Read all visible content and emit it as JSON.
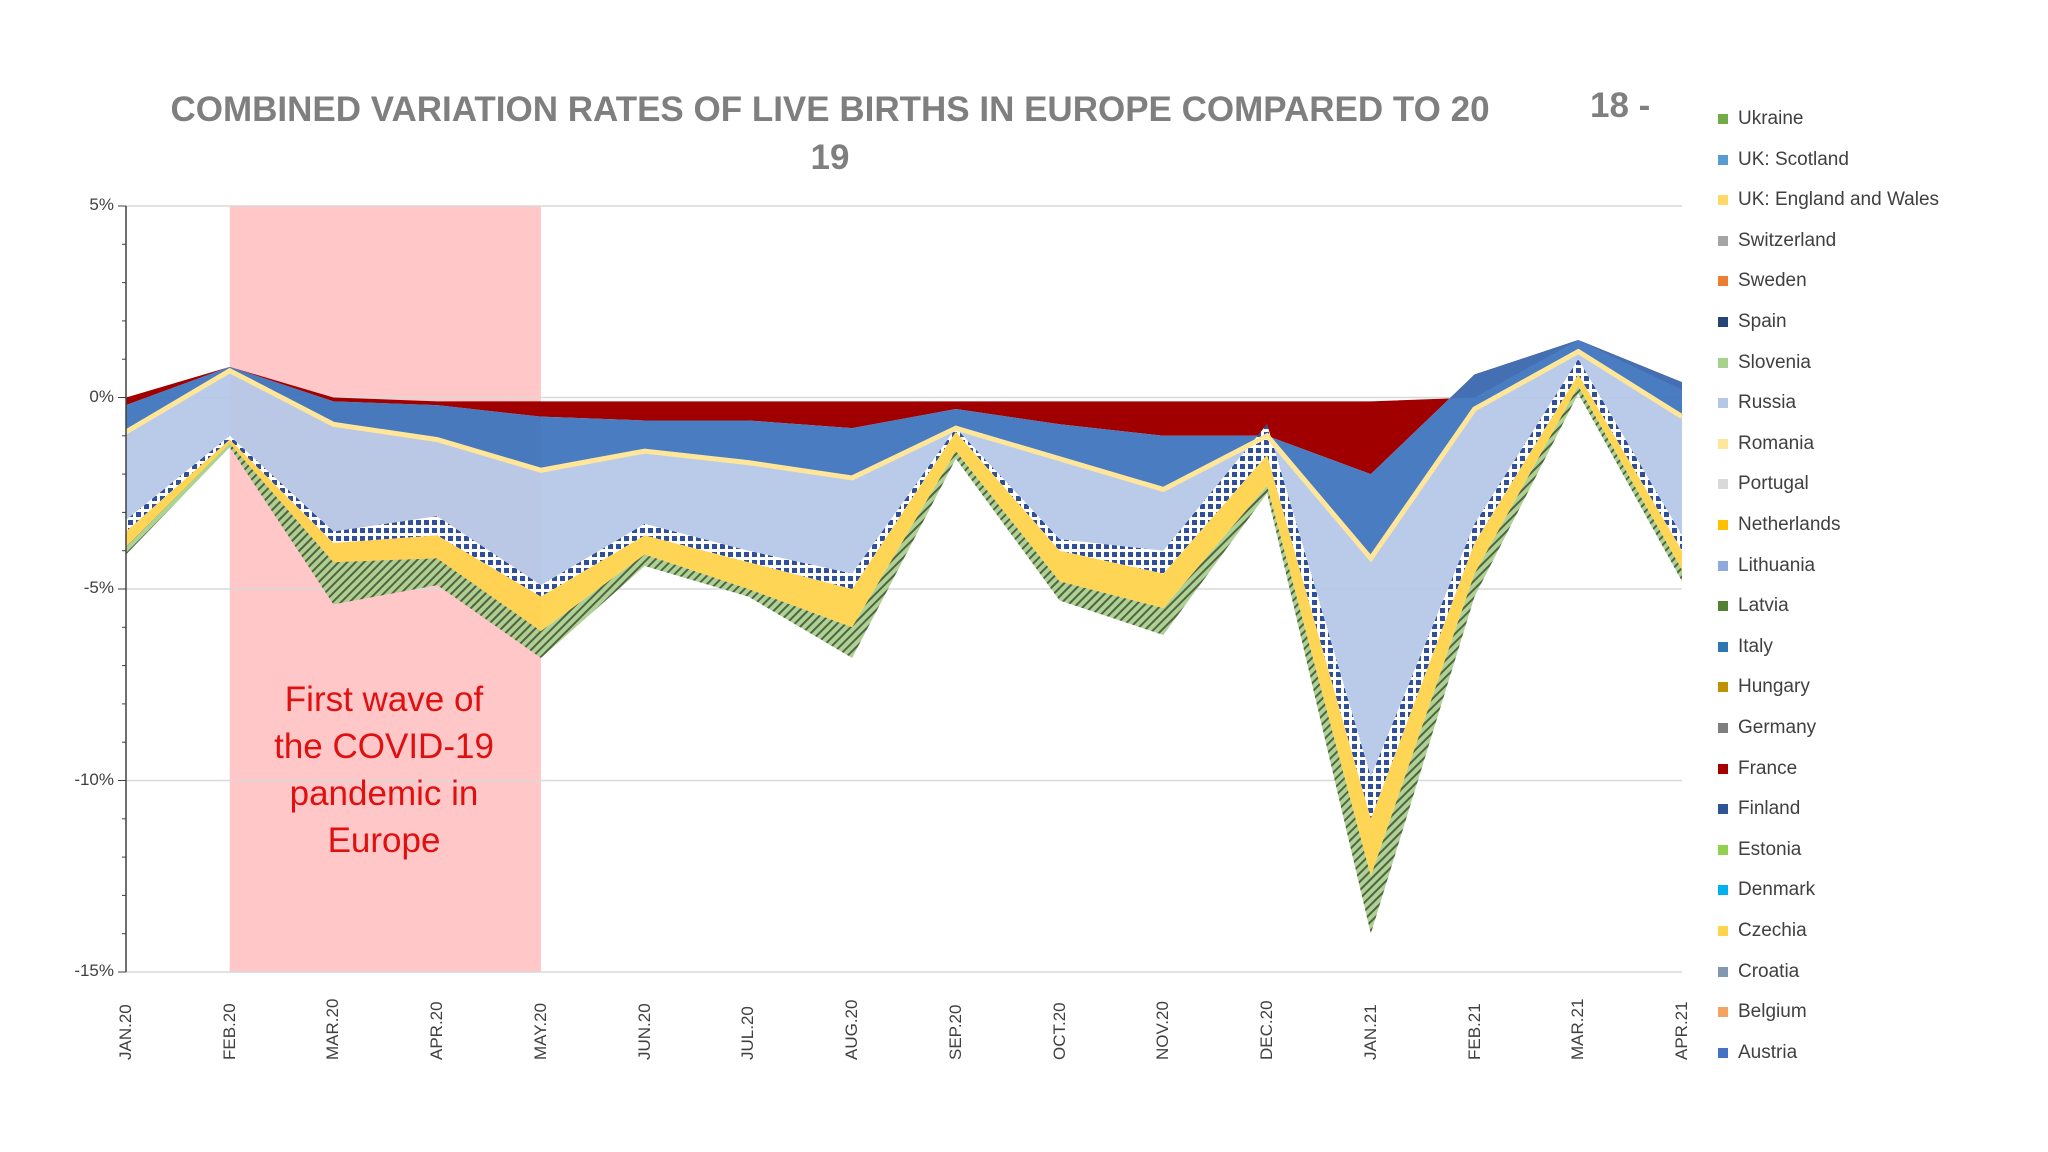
{
  "title": "COMBINED VARIATION RATES OF LIVE BIRTHS IN EUROPE COMPARED TO 20",
  "title_line2": "19",
  "title_suffix": "18 -",
  "annotation": {
    "lines": [
      "First wave of",
      "the COVID-19",
      "pandemic in",
      "Europe"
    ],
    "x_start": "FEB.20",
    "x_end": "MAY.20",
    "color": "#ffc7c7"
  },
  "legend": [
    {
      "label": "Ukraine",
      "color": "#70ad47"
    },
    {
      "label": "UK: Scotland",
      "color": "#5b9bd5"
    },
    {
      "label": "UK: England and Wales",
      "color": "#ffd966"
    },
    {
      "label": "Switzerland",
      "color": "#a5a5a5"
    },
    {
      "label": "Sweden",
      "color": "#ed7d31"
    },
    {
      "label": "Spain",
      "color": "#264478"
    },
    {
      "label": "Slovenia",
      "color": "#a9d18e"
    },
    {
      "label": "Russia",
      "color": "#b4c7e7"
    },
    {
      "label": "Romania",
      "color": "#ffe699"
    },
    {
      "label": "Portugal",
      "color": "#d9d9d9"
    },
    {
      "label": "Netherlands",
      "color": "#ffc000"
    },
    {
      "label": "Lithuania",
      "color": "#8faadc"
    },
    {
      "label": "Latvia",
      "color": "#548235"
    },
    {
      "label": "Italy",
      "color": "#2e75b6"
    },
    {
      "label": "Hungary",
      "color": "#bf9000"
    },
    {
      "label": "Germany",
      "color": "#7f7f7f"
    },
    {
      "label": "France",
      "color": "#a50000"
    },
    {
      "label": "Finland",
      "color": "#2f5597"
    },
    {
      "label": "Estonia",
      "color": "#92d050"
    },
    {
      "label": "Denmark",
      "color": "#00b0f0"
    },
    {
      "label": "Czechia",
      "color": "#ffd34d"
    },
    {
      "label": "Croatia",
      "color": "#8497b0"
    },
    {
      "label": "Belgium",
      "color": "#f4a460"
    },
    {
      "label": "Austria",
      "color": "#4472c4"
    }
  ],
  "chart_data": {
    "type": "area",
    "stacked": true,
    "title": "COMBINED VARIATION RATES OF LIVE BIRTHS IN EUROPE COMPARED TO 20 19",
    "categories": [
      "JAN.20",
      "FEB.20",
      "MAR.20",
      "APR.20",
      "MAY.20",
      "JUN.20",
      "JUL.20",
      "AUG.20",
      "SEP.20",
      "OCT.20",
      "NOV.20",
      "DEC.20",
      "JAN.21",
      "FEB.21",
      "MAR.21",
      "APR.21"
    ],
    "y_ticks": [
      "5%",
      "0%",
      "-5%",
      "-10%",
      "-15%"
    ],
    "ylim": [
      -15,
      5
    ],
    "grid": true,
    "legend_position": "right",
    "approx_stack_boundaries_percent": [
      {
        "name": "France upper",
        "values": [
          0,
          0.8,
          0,
          -0.1,
          -0.1,
          -0.1,
          -0.1,
          -0.1,
          -0.1,
          -0.1,
          -0.1,
          -0.1,
          -0.1,
          0,
          1.5,
          0.2
        ]
      },
      {
        "name": "Italy upper",
        "values": [
          -0.2,
          0.8,
          -0.1,
          -0.2,
          -0.5,
          -0.6,
          -0.6,
          -0.8,
          -0.3,
          -0.7,
          -1,
          -1,
          -2,
          0.6,
          1.5,
          0.4
        ]
      },
      {
        "name": "Russia upper",
        "values": [
          -0.9,
          0.7,
          -0.7,
          -1.1,
          -1.9,
          -1.4,
          -1.7,
          -2.1,
          -0.8,
          -1.6,
          -2.4,
          -1,
          -4.2,
          -0.3,
          1.2,
          -0.5
        ]
      },
      {
        "name": "Russia lower",
        "values": [
          -3.2,
          -1,
          -3.5,
          -3.1,
          -4.9,
          -3.3,
          -4,
          -4.6,
          -0.8,
          -3.7,
          -4,
          -0.7,
          -9.9,
          -3.3,
          1,
          -3.6
        ]
      },
      {
        "name": "Spain lower",
        "values": [
          -3.5,
          -1.1,
          -3.8,
          -3.6,
          -5.2,
          -3.6,
          -4.3,
          -5,
          -0.9,
          -4,
          -4.6,
          -1.5,
          -11,
          -3.8,
          0.6,
          -4
        ]
      },
      {
        "name": "UK: England and Wales lower",
        "values": [
          -3.9,
          -1.2,
          -4.3,
          -4.2,
          -6.1,
          -4.1,
          -5,
          -6,
          -1.4,
          -4.8,
          -5.5,
          -2.3,
          -12.5,
          -4.6,
          0.3,
          -4.5
        ]
      },
      {
        "name": "Ukraine lower",
        "values": [
          -4.1,
          -1.3,
          -5.4,
          -4.9,
          -6.8,
          -4.4,
          -5.2,
          -6.8,
          -1.6,
          -5.3,
          -6.2,
          -2.5,
          -14,
          -5.2,
          0.1,
          -4.8
        ]
      }
    ]
  }
}
